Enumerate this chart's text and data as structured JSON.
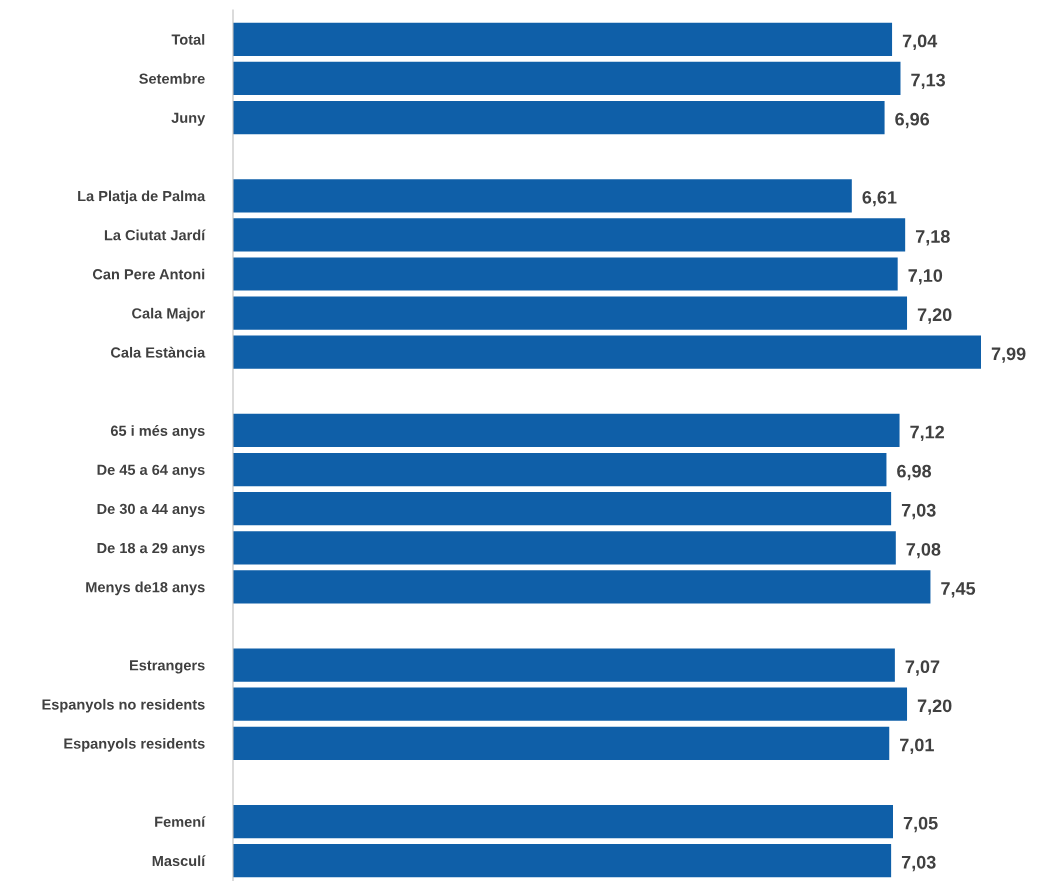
{
  "chart_data": {
    "type": "bar",
    "orientation": "horizontal",
    "categories": [
      "Total",
      "Setembre",
      "Juny",
      null,
      "La Platja de Palma",
      "La Ciutat Jardí",
      "Can Pere Antoni",
      "Cala Major",
      "Cala Estància",
      null,
      "65 i més anys",
      "De 45 a 64 anys",
      "De 30 a 44 anys",
      "De 18 a 29 anys",
      "Menys de18 anys",
      null,
      "Estrangers",
      "Espanyols no residents",
      "Espanyols residents",
      null,
      "Femení",
      "Masculí"
    ],
    "values": [
      7.04,
      7.13,
      6.96,
      null,
      6.61,
      7.18,
      7.1,
      7.2,
      7.99,
      null,
      7.12,
      6.98,
      7.03,
      7.08,
      7.45,
      null,
      7.07,
      7.2,
      7.01,
      null,
      7.05,
      7.03
    ],
    "value_labels": [
      "7,04",
      "7,13",
      "6,96",
      null,
      "6,61",
      "7,18",
      "7,10",
      "7,20",
      "7,99",
      null,
      "7,12",
      "6,98",
      "7,03",
      "7,08",
      "7,45",
      null,
      "7,07",
      "7,20",
      "7,01",
      null,
      "7,05",
      "7,03"
    ],
    "color": "#0f5fa8",
    "grid": false,
    "legend": false,
    "tick_labels": "y"
  }
}
